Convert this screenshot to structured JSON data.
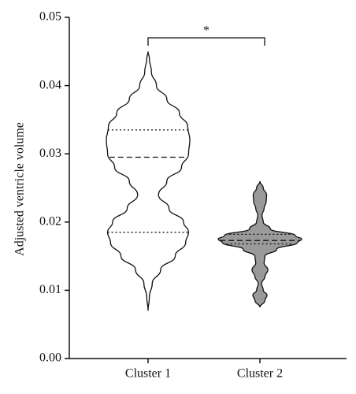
{
  "chart_data": {
    "type": "violin",
    "y_label": "Adjusted ventricle volume",
    "ylim": [
      0,
      0.05
    ],
    "yticks": [
      {
        "value": 0,
        "label": "0.00"
      },
      0.01,
      0.02,
      0.03,
      0.04,
      0.05
    ],
    "categories": [
      "Cluster 1",
      "Cluster 2"
    ],
    "series": [
      {
        "name": "Cluster 1",
        "color": "#ffffff",
        "median": 0.0295,
        "q1": 0.0185,
        "q3": 0.0335,
        "profile_y": [
          0.007,
          0.009,
          0.011,
          0.013,
          0.015,
          0.017,
          0.0185,
          0.02,
          0.022,
          0.024,
          0.026,
          0.028,
          0.03,
          0.032,
          0.034,
          0.036,
          0.038,
          0.04,
          0.042,
          0.044,
          0.045
        ],
        "density": [
          0,
          0.03,
          0.1,
          0.3,
          0.65,
          0.9,
          0.97,
          0.85,
          0.5,
          0.25,
          0.45,
          0.8,
          0.97,
          1.0,
          0.95,
          0.75,
          0.45,
          0.2,
          0.08,
          0.03,
          0
        ]
      },
      {
        "name": "Cluster 2",
        "color": "#9a9a9a",
        "median": 0.0173,
        "q1": 0.0168,
        "q3": 0.0182,
        "profile_y": [
          0.0075,
          0.0085,
          0.0093,
          0.01,
          0.011,
          0.012,
          0.013,
          0.014,
          0.015,
          0.016,
          0.017,
          0.0175,
          0.018,
          0.019,
          0.02,
          0.021,
          0.022,
          0.023,
          0.024,
          0.025,
          0.026
        ],
        "density": [
          0,
          0.12,
          0.17,
          0.08,
          0.04,
          0.12,
          0.19,
          0.1,
          0.12,
          0.4,
          0.9,
          1.0,
          0.85,
          0.25,
          0.08,
          0.05,
          0.1,
          0.15,
          0.16,
          0.08,
          0
        ]
      }
    ],
    "significance": {
      "label": "*",
      "y": 0.047
    }
  }
}
